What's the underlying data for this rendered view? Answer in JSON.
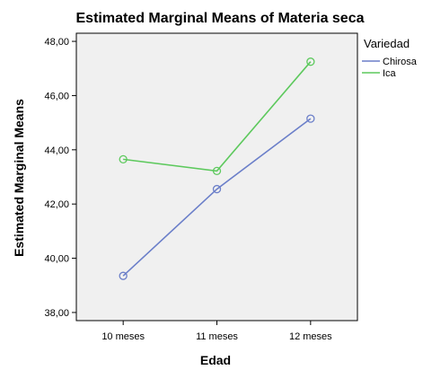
{
  "chart_data": {
    "type": "line",
    "title": "Estimated Marginal Means of Materia seca",
    "xlabel": "Edad",
    "ylabel": "Estimated Marginal Means",
    "categories": [
      "10 meses",
      "11 meses",
      "12 meses"
    ],
    "yticks": [
      "38,00",
      "40,00",
      "42,00",
      "44,00",
      "46,00",
      "48,00"
    ],
    "ylim": [
      37.7,
      48.3
    ],
    "grid": false,
    "legend": {
      "title": "Variedad",
      "placement": "right"
    },
    "series": [
      {
        "name": "Chirosa",
        "color": "#6b7fc9",
        "values": [
          39.35,
          42.55,
          45.15
        ]
      },
      {
        "name": "Ica",
        "color": "#5dc95d",
        "values": [
          43.65,
          43.22,
          47.25
        ]
      }
    ],
    "plot_background": "#f0f0f0"
  }
}
